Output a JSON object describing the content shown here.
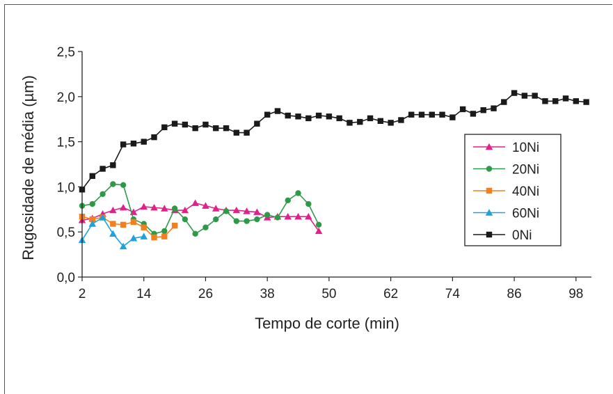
{
  "chart_data": {
    "type": "line",
    "xlabel": "Tempo de corte (min)",
    "ylabel": "Rugosidade de média (µm)",
    "xlim": [
      2,
      101
    ],
    "ylim": [
      0.0,
      2.5
    ],
    "xticks": [
      2,
      14,
      26,
      38,
      50,
      62,
      74,
      86,
      98
    ],
    "yticks": [
      0.0,
      0.5,
      1.0,
      1.5,
      2.0,
      2.5
    ],
    "ytick_labels": [
      "0,0",
      "0,5",
      "1,0",
      "1,5",
      "2,0",
      "2,5"
    ],
    "grid": false,
    "legend_position": "right",
    "series": [
      {
        "name": "10Ni",
        "color": "#e0218a",
        "marker": "triangle",
        "x": [
          2,
          4,
          6,
          8,
          10,
          12,
          14,
          16,
          18,
          20,
          22,
          24,
          26,
          28,
          30,
          32,
          34,
          36,
          38,
          40,
          42,
          44,
          46,
          48
        ],
        "y": [
          0.63,
          0.65,
          0.7,
          0.74,
          0.77,
          0.72,
          0.78,
          0.77,
          0.76,
          0.74,
          0.74,
          0.82,
          0.79,
          0.76,
          0.74,
          0.74,
          0.73,
          0.72,
          0.66,
          0.67,
          0.67,
          0.67,
          0.67,
          0.51
        ]
      },
      {
        "name": "20Ni",
        "color": "#2e9a48",
        "marker": "circle",
        "x": [
          2,
          4,
          6,
          8,
          10,
          12,
          14,
          16,
          18,
          20,
          22,
          24,
          26,
          28,
          30,
          32,
          34,
          36,
          38,
          40,
          42,
          44,
          46,
          48
        ],
        "y": [
          0.79,
          0.81,
          0.92,
          1.03,
          1.02,
          0.64,
          0.59,
          0.48,
          0.51,
          0.76,
          0.64,
          0.48,
          0.55,
          0.64,
          0.73,
          0.62,
          0.62,
          0.64,
          0.69,
          0.66,
          0.85,
          0.93,
          0.81,
          0.58
        ]
      },
      {
        "name": "40Ni",
        "color": "#f47f1f",
        "marker": "square",
        "x": [
          2,
          4,
          6,
          8,
          10,
          12,
          14,
          16,
          18,
          20
        ],
        "y": [
          0.67,
          0.64,
          0.66,
          0.59,
          0.58,
          0.61,
          0.55,
          0.44,
          0.45,
          0.57
        ]
      },
      {
        "name": "60Ni",
        "color": "#1aa3df",
        "marker": "triangle",
        "x": [
          2,
          4,
          6,
          8,
          10,
          12,
          14
        ],
        "y": [
          0.41,
          0.59,
          0.66,
          0.48,
          0.34,
          0.43,
          0.45
        ]
      },
      {
        "name": "0Ni",
        "color": "#1a1a1a",
        "marker": "square",
        "x": [
          2,
          4,
          6,
          8,
          10,
          12,
          14,
          16,
          18,
          20,
          22,
          24,
          26,
          28,
          30,
          32,
          34,
          36,
          38,
          40,
          42,
          44,
          46,
          48,
          50,
          52,
          54,
          56,
          58,
          60,
          62,
          64,
          66,
          68,
          70,
          72,
          74,
          76,
          78,
          80,
          82,
          84,
          86,
          88,
          90,
          92,
          94,
          96,
          98,
          100
        ],
        "y": [
          0.97,
          1.12,
          1.2,
          1.24,
          1.47,
          1.48,
          1.5,
          1.55,
          1.66,
          1.7,
          1.69,
          1.65,
          1.69,
          1.65,
          1.65,
          1.6,
          1.6,
          1.7,
          1.8,
          1.84,
          1.79,
          1.78,
          1.76,
          1.79,
          1.78,
          1.76,
          1.71,
          1.72,
          1.76,
          1.73,
          1.71,
          1.74,
          1.8,
          1.8,
          1.8,
          1.8,
          1.77,
          1.86,
          1.81,
          1.85,
          1.87,
          1.94,
          2.04,
          2.01,
          2.01,
          1.95,
          1.95,
          1.98,
          1.95,
          1.94
        ]
      }
    ]
  }
}
